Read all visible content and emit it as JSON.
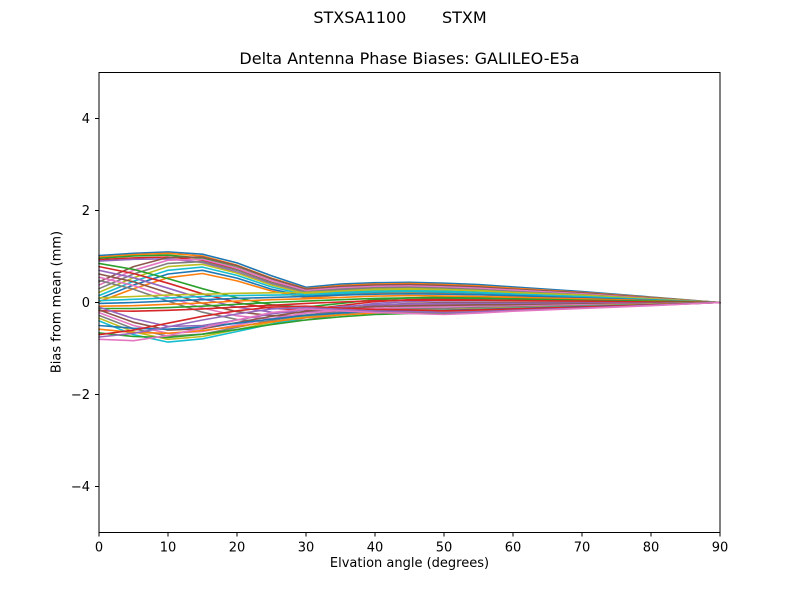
{
  "figure": {
    "background": "#ffffff",
    "frame_color": "#000000"
  },
  "chart_data": {
    "type": "line",
    "suptitle": "STXSA1100       STXM",
    "title": "Delta Antenna Phase Biases: GALILEO-E5a",
    "xlabel": "Elvation angle (degrees)",
    "ylabel": "Bias from mean (mm)",
    "xlim": [
      0,
      90
    ],
    "ylim": [
      -5,
      5
    ],
    "xticks": [
      0,
      10,
      20,
      30,
      40,
      50,
      60,
      70,
      80,
      90
    ],
    "yticks": [
      -4,
      -2,
      0,
      2,
      4
    ],
    "grid": false,
    "legend": "none",
    "x": [
      0,
      5,
      10,
      15,
      20,
      25,
      30,
      35,
      40,
      45,
      50,
      55,
      60,
      70,
      80,
      90
    ],
    "series": [
      {
        "color": "#1f77b4",
        "values": [
          1.02,
          1.07,
          1.1,
          1.05,
          0.86,
          0.58,
          0.33,
          0.4,
          0.43,
          0.44,
          0.42,
          0.39,
          0.34,
          0.24,
          0.12,
          0
        ]
      },
      {
        "color": "#ff7f0e",
        "values": [
          0.99,
          1.04,
          1.07,
          1.01,
          0.81,
          0.53,
          0.3,
          0.37,
          0.4,
          0.41,
          0.39,
          0.36,
          0.31,
          0.22,
          0.11,
          0
        ]
      },
      {
        "color": "#2ca02c",
        "values": [
          0.96,
          1.01,
          1.03,
          0.96,
          0.76,
          0.49,
          0.27,
          0.34,
          0.37,
          0.38,
          0.36,
          0.33,
          0.28,
          0.2,
          0.1,
          0
        ]
      },
      {
        "color": "#d62728",
        "values": [
          0.93,
          0.97,
          0.99,
          0.92,
          0.71,
          0.44,
          0.24,
          0.3,
          0.34,
          0.35,
          0.33,
          0.3,
          0.26,
          0.18,
          0.09,
          0
        ]
      },
      {
        "color": "#9467bd",
        "values": [
          0.9,
          0.94,
          0.95,
          0.87,
          0.66,
          0.4,
          0.21,
          0.27,
          0.31,
          0.32,
          0.3,
          0.27,
          0.23,
          0.16,
          0.08,
          0
        ]
      },
      {
        "color": "#8c564b",
        "values": [
          0.45,
          0.78,
          0.98,
          0.99,
          0.8,
          0.52,
          0.29,
          0.35,
          0.38,
          0.39,
          0.37,
          0.34,
          0.29,
          0.21,
          0.1,
          0
        ]
      },
      {
        "color": "#e377c2",
        "values": [
          0.38,
          0.7,
          0.92,
          0.94,
          0.75,
          0.48,
          0.26,
          0.32,
          0.35,
          0.36,
          0.34,
          0.31,
          0.27,
          0.19,
          0.09,
          0
        ]
      },
      {
        "color": "#7f7f7f",
        "values": [
          0.3,
          0.62,
          0.85,
          0.89,
          0.7,
          0.43,
          0.23,
          0.29,
          0.32,
          0.33,
          0.31,
          0.28,
          0.24,
          0.17,
          0.08,
          0
        ]
      },
      {
        "color": "#bcbd22",
        "values": [
          0.22,
          0.54,
          0.78,
          0.83,
          0.64,
          0.38,
          0.19,
          0.25,
          0.29,
          0.3,
          0.28,
          0.25,
          0.21,
          0.15,
          0.07,
          0
        ]
      },
      {
        "color": "#17becf",
        "values": [
          0.15,
          0.46,
          0.7,
          0.77,
          0.59,
          0.34,
          0.16,
          0.22,
          0.26,
          0.27,
          0.25,
          0.22,
          0.19,
          0.13,
          0.06,
          0
        ]
      },
      {
        "color": "#1f77b4",
        "values": [
          0.08,
          0.38,
          0.62,
          0.7,
          0.53,
          0.29,
          0.13,
          0.19,
          0.22,
          0.23,
          0.22,
          0.2,
          0.17,
          0.11,
          0.05,
          0
        ]
      },
      {
        "color": "#ff7f0e",
        "values": [
          0.02,
          0.3,
          0.54,
          0.63,
          0.47,
          0.25,
          0.1,
          0.16,
          0.19,
          0.2,
          0.19,
          0.17,
          0.14,
          0.09,
          0.04,
          0
        ]
      },
      {
        "color": "#2ca02c",
        "values": [
          0.85,
          0.72,
          0.52,
          0.3,
          0.1,
          -0.05,
          -0.1,
          -0.02,
          0.06,
          0.1,
          0.12,
          0.11,
          0.1,
          0.07,
          0.03,
          0
        ]
      },
      {
        "color": "#d62728",
        "values": [
          0.78,
          0.63,
          0.42,
          0.19,
          0.0,
          -0.13,
          -0.16,
          -0.07,
          0.02,
          0.06,
          0.08,
          0.08,
          0.07,
          0.05,
          0.02,
          0
        ]
      },
      {
        "color": "#9467bd",
        "values": [
          0.7,
          0.54,
          0.31,
          0.08,
          -0.1,
          -0.21,
          -0.22,
          -0.12,
          -0.02,
          0.02,
          0.04,
          0.04,
          0.04,
          0.03,
          0.01,
          0
        ]
      },
      {
        "color": "#8c564b",
        "values": [
          0.62,
          0.45,
          0.21,
          -0.02,
          -0.2,
          -0.29,
          -0.28,
          -0.17,
          -0.06,
          -0.02,
          0.0,
          0.0,
          0.0,
          0.0,
          0.0,
          0
        ]
      },
      {
        "color": "#e377c2",
        "values": [
          0.55,
          0.37,
          0.12,
          -0.12,
          -0.29,
          -0.36,
          -0.33,
          -0.22,
          -0.1,
          -0.05,
          -0.03,
          -0.03,
          -0.03,
          -0.02,
          -0.01,
          0
        ]
      },
      {
        "color": "#7f7f7f",
        "values": [
          0.48,
          0.29,
          0.03,
          -0.21,
          -0.37,
          -0.43,
          -0.38,
          -0.26,
          -0.14,
          -0.09,
          -0.07,
          -0.06,
          -0.06,
          -0.04,
          -0.02,
          0
        ]
      },
      {
        "color": "#bcbd22",
        "values": [
          0.1,
          0.13,
          0.16,
          0.18,
          0.2,
          0.21,
          0.22,
          0.25,
          0.28,
          0.29,
          0.28,
          0.26,
          0.22,
          0.16,
          0.08,
          0
        ]
      },
      {
        "color": "#17becf",
        "values": [
          0.04,
          0.07,
          0.1,
          0.13,
          0.15,
          0.16,
          0.17,
          0.2,
          0.23,
          0.24,
          0.23,
          0.21,
          0.18,
          0.13,
          0.06,
          0
        ]
      },
      {
        "color": "#1f77b4",
        "values": [
          -0.02,
          0.0,
          0.03,
          0.06,
          0.09,
          0.11,
          0.13,
          0.16,
          0.18,
          0.19,
          0.18,
          0.17,
          0.15,
          0.1,
          0.05,
          0
        ]
      },
      {
        "color": "#ff7f0e",
        "values": [
          -0.08,
          -0.07,
          -0.04,
          -0.01,
          0.03,
          0.06,
          0.08,
          0.11,
          0.14,
          0.15,
          0.14,
          0.13,
          0.11,
          0.08,
          0.04,
          0
        ]
      },
      {
        "color": "#2ca02c",
        "values": [
          -0.13,
          -0.13,
          -0.11,
          -0.08,
          -0.04,
          0.0,
          0.03,
          0.06,
          0.09,
          0.1,
          0.1,
          0.09,
          0.08,
          0.05,
          0.03,
          0
        ]
      },
      {
        "color": "#d62728",
        "values": [
          -0.18,
          -0.19,
          -0.17,
          -0.14,
          -0.1,
          -0.06,
          -0.02,
          0.01,
          0.04,
          0.05,
          0.05,
          0.05,
          0.04,
          0.03,
          0.01,
          0
        ]
      },
      {
        "color": "#9467bd",
        "values": [
          -0.1,
          -0.35,
          -0.52,
          -0.5,
          -0.38,
          -0.25,
          -0.15,
          -0.09,
          -0.05,
          -0.03,
          -0.02,
          -0.02,
          -0.02,
          -0.01,
          -0.01,
          0
        ]
      },
      {
        "color": "#8c564b",
        "values": [
          -0.16,
          -0.43,
          -0.6,
          -0.57,
          -0.44,
          -0.3,
          -0.19,
          -0.13,
          -0.09,
          -0.07,
          -0.06,
          -0.05,
          -0.05,
          -0.03,
          -0.02,
          0
        ]
      },
      {
        "color": "#e377c2",
        "values": [
          -0.22,
          -0.5,
          -0.67,
          -0.63,
          -0.49,
          -0.35,
          -0.23,
          -0.17,
          -0.13,
          -0.11,
          -0.1,
          -0.09,
          -0.08,
          -0.05,
          -0.03,
          0
        ]
      },
      {
        "color": "#7f7f7f",
        "values": [
          -0.28,
          -0.57,
          -0.73,
          -0.69,
          -0.54,
          -0.39,
          -0.27,
          -0.21,
          -0.16,
          -0.14,
          -0.13,
          -0.11,
          -0.1,
          -0.07,
          -0.03,
          0
        ]
      },
      {
        "color": "#bcbd22",
        "values": [
          -0.34,
          -0.64,
          -0.8,
          -0.74,
          -0.59,
          -0.43,
          -0.3,
          -0.24,
          -0.19,
          -0.17,
          -0.16,
          -0.14,
          -0.12,
          -0.08,
          -0.04,
          0
        ]
      },
      {
        "color": "#17becf",
        "values": [
          -0.4,
          -0.7,
          -0.86,
          -0.79,
          -0.63,
          -0.47,
          -0.33,
          -0.27,
          -0.22,
          -0.2,
          -0.19,
          -0.16,
          -0.13,
          -0.09,
          -0.05,
          0
        ]
      },
      {
        "color": "#1f77b4",
        "values": [
          -0.5,
          -0.56,
          -0.58,
          -0.53,
          -0.45,
          -0.36,
          -0.28,
          -0.23,
          -0.19,
          -0.17,
          -0.17,
          -0.15,
          -0.13,
          -0.09,
          -0.05,
          0
        ]
      },
      {
        "color": "#ff7f0e",
        "values": [
          -0.58,
          -0.65,
          -0.67,
          -0.61,
          -0.52,
          -0.42,
          -0.33,
          -0.27,
          -0.23,
          -0.21,
          -0.21,
          -0.18,
          -0.15,
          -0.11,
          -0.06,
          0
        ]
      },
      {
        "color": "#2ca02c",
        "values": [
          -0.66,
          -0.74,
          -0.76,
          -0.69,
          -0.59,
          -0.48,
          -0.38,
          -0.31,
          -0.26,
          -0.24,
          -0.24,
          -0.21,
          -0.17,
          -0.12,
          -0.06,
          0
        ]
      },
      {
        "color": "#d62728",
        "values": [
          -0.7,
          -0.6,
          -0.45,
          -0.3,
          -0.18,
          -0.1,
          -0.08,
          -0.12,
          -0.15,
          -0.16,
          -0.18,
          -0.16,
          -0.14,
          -0.1,
          -0.05,
          0
        ]
      },
      {
        "color": "#9467bd",
        "values": [
          -0.75,
          -0.67,
          -0.53,
          -0.38,
          -0.25,
          -0.14,
          -0.11,
          -0.15,
          -0.19,
          -0.2,
          -0.22,
          -0.2,
          -0.17,
          -0.12,
          -0.06,
          0
        ]
      },
      {
        "color": "#e377c2",
        "values": [
          -0.8,
          -0.83,
          -0.72,
          -0.55,
          -0.38,
          -0.22,
          -0.14,
          -0.18,
          -0.22,
          -0.24,
          -0.26,
          -0.23,
          -0.19,
          -0.13,
          -0.07,
          0
        ]
      }
    ]
  }
}
